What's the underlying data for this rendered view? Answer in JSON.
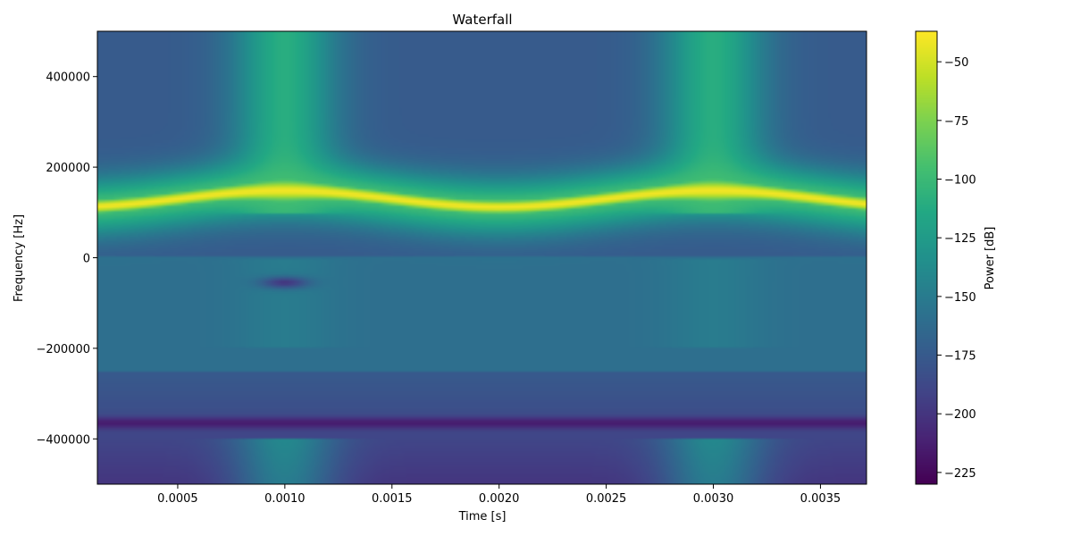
{
  "chart_data": {
    "type": "heatmap",
    "title": "Waterfall",
    "xlabel": "Time [s]",
    "ylabel": "Frequency [Hz]",
    "colorbar_label": "Power [dB]",
    "colormap": "viridis",
    "xlim": [
      0.000125,
      0.003715
    ],
    "ylim": [
      -500000,
      500000
    ],
    "clim": [
      -230,
      -37
    ],
    "xticks": [
      0.0005,
      0.001,
      0.0015,
      0.002,
      0.0025,
      0.003,
      0.0035
    ],
    "xtick_labels": [
      "0.0005",
      "0.0010",
      "0.0015",
      "0.0020",
      "0.0025",
      "0.0030",
      "0.0035"
    ],
    "yticks": [
      400000,
      200000,
      0,
      -200000,
      -400000
    ],
    "ytick_labels": [
      "400000",
      "200000",
      "0",
      "−200000",
      "−400000"
    ],
    "colorbar_ticks": [
      -50,
      -75,
      -100,
      -125,
      -150,
      -175,
      -200,
      -225
    ],
    "colorbar_tick_labels": [
      "−50",
      "−75",
      "−100",
      "−125",
      "−150",
      "−175",
      "−200",
      "−225"
    ],
    "features": {
      "chirp_tone": {
        "center_hz": 130000,
        "swing_hz": 18000,
        "period_s": 0.002,
        "peak_db": -40
      },
      "band_edge_hz": 100000,
      "lower_dark_band_hz": -365000,
      "lower_edge_hz": -400000,
      "bright_column_times_s": [
        0.001,
        0.003
      ],
      "background_db_upper": -175,
      "background_db_lower": -160
    }
  }
}
